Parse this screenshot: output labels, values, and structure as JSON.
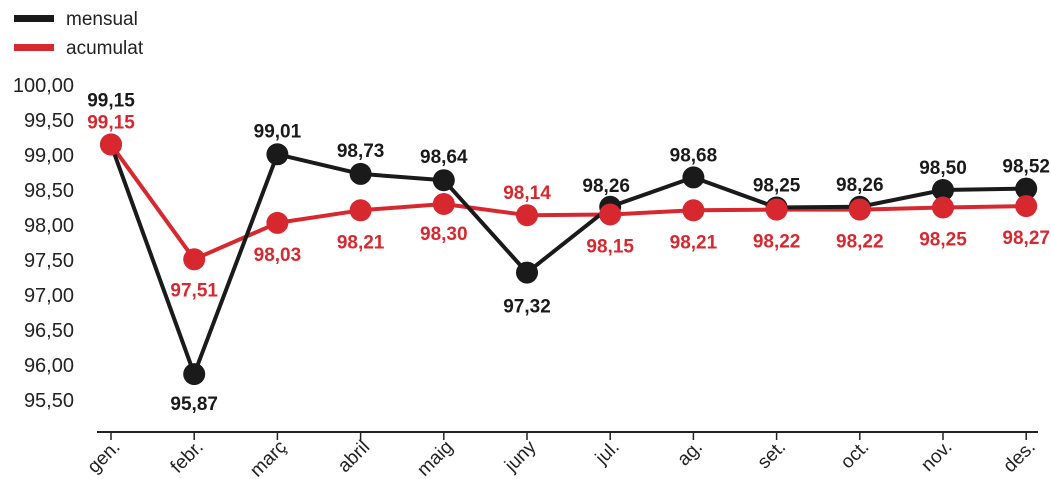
{
  "chart_data": {
    "type": "line",
    "categories": [
      "gen.",
      "febr.",
      "març",
      "abril",
      "maig",
      "juny",
      "jul.",
      "ag.",
      "set.",
      "oct.",
      "nov.",
      "des."
    ],
    "series": [
      {
        "name": "mensual",
        "color": "#1a1a1a",
        "values": [
          99.15,
          95.87,
          99.01,
          98.73,
          98.64,
          97.32,
          98.26,
          98.68,
          98.25,
          98.26,
          98.5,
          98.52
        ],
        "labels": [
          "99,15",
          "95,87",
          "99,01",
          "98,73",
          "98,64",
          "97,32",
          "98,26",
          "98,68",
          "98,25",
          "98,26",
          "98,50",
          "98,52"
        ]
      },
      {
        "name": "acumulat",
        "color": "#d7282f",
        "values": [
          99.15,
          97.51,
          98.03,
          98.21,
          98.3,
          98.14,
          98.15,
          98.21,
          98.22,
          98.22,
          98.25,
          98.27
        ],
        "labels": [
          "99,15",
          "97,51",
          "98,03",
          "98,21",
          "98,30",
          "98,14",
          "98,15",
          "98,21",
          "98,22",
          "98,22",
          "98,25",
          "98,27"
        ]
      }
    ],
    "y_ticks": [
      "100,00",
      "99,50",
      "99,00",
      "98,50",
      "98,00",
      "97,50",
      "97,00",
      "96,50",
      "96,00",
      "95,50"
    ],
    "ylim": [
      95.5,
      100.0
    ],
    "grid": false,
    "legend": "top-left"
  }
}
